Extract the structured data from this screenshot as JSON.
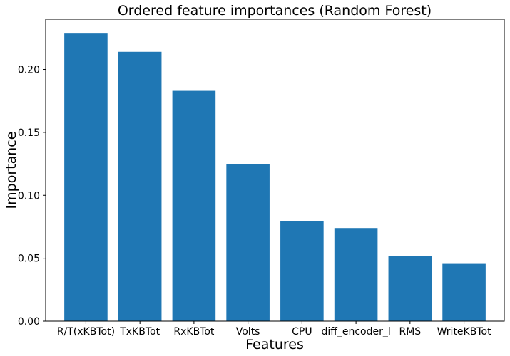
{
  "chart_data": {
    "type": "bar",
    "title": "Ordered feature importances (Random Forest)",
    "xlabel": "Features",
    "ylabel": "Importance",
    "categories": [
      "R/T(xKBTot)",
      "TxKBTot",
      "RxKBTot",
      "Volts",
      "CPU",
      "diff_encoder_l",
      "RMS",
      "WriteKBTot"
    ],
    "values": [
      0.2285,
      0.214,
      0.183,
      0.125,
      0.0795,
      0.074,
      0.0515,
      0.0455
    ],
    "ylim": [
      0,
      0.2399
    ],
    "yticks": [
      0.0,
      0.05,
      0.1,
      0.15,
      0.2
    ],
    "ytick_labels": [
      "0.00",
      "0.05",
      "0.10",
      "0.15",
      "0.20"
    ],
    "bar_color": "#1f77b4",
    "grid": false,
    "legend": "none"
  }
}
